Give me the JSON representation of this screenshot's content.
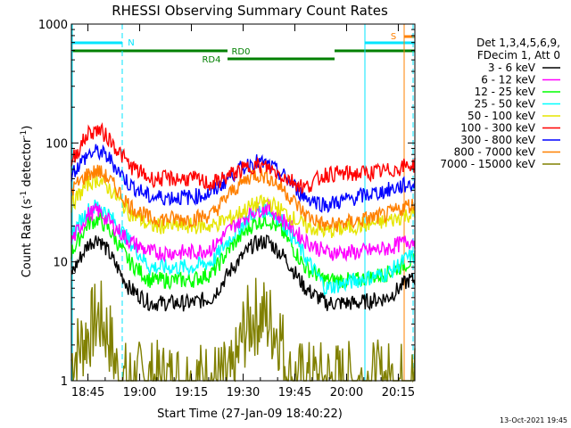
{
  "chart_data": {
    "type": "line",
    "title": "RHESSI Observing Summary Count Rates",
    "xlabel": "Start Time (27-Jan-09 18:40:22)",
    "ylabel_main": "Count Rate (s",
    "ylabel_sup1": "-1",
    "ylabel_mid": " detector",
    "ylabel_sup2": "-1",
    "ylabel_end": ")",
    "yscale": "log",
    "ylim": [
      1,
      1000
    ],
    "xlim_minutes": [
      18.67,
      20.33
    ],
    "x_ticks": [
      {
        "label": "18:45",
        "t": 18.75
      },
      {
        "label": "19:00",
        "t": 19.0
      },
      {
        "label": "19:15",
        "t": 19.25
      },
      {
        "label": "19:30",
        "t": 19.5
      },
      {
        "label": "19:45",
        "t": 19.75
      },
      {
        "label": "20:00",
        "t": 20.0
      },
      {
        "label": "20:15",
        "t": 20.25
      }
    ],
    "y_ticks": [
      {
        "label": "1",
        "v": 1
      },
      {
        "label": "10",
        "v": 10
      },
      {
        "label": "100",
        "v": 100
      },
      {
        "label": "1000",
        "v": 1000
      }
    ],
    "legend": {
      "header1": "Det 1,3,4,5,6,9,",
      "header2": "FDecim 1, Att 0",
      "placement": "right"
    },
    "series": [
      {
        "name": "3 - 6 keV",
        "color": "#000000",
        "points": [
          [
            18.67,
            8
          ],
          [
            18.75,
            14
          ],
          [
            18.8,
            16
          ],
          [
            18.85,
            12
          ],
          [
            18.95,
            6
          ],
          [
            19.05,
            4.5
          ],
          [
            19.25,
            4.5
          ],
          [
            19.35,
            5
          ],
          [
            19.45,
            9
          ],
          [
            19.55,
            14
          ],
          [
            19.62,
            15
          ],
          [
            19.7,
            11
          ],
          [
            19.8,
            6
          ],
          [
            19.9,
            4.5
          ],
          [
            20.05,
            4.5
          ],
          [
            20.2,
            5
          ],
          [
            20.3,
            7
          ]
        ]
      },
      {
        "name": "6 - 12 keV",
        "color": "#ff00ff",
        "points": [
          [
            18.67,
            15
          ],
          [
            18.75,
            25
          ],
          [
            18.8,
            27
          ],
          [
            18.85,
            22
          ],
          [
            18.95,
            15
          ],
          [
            19.05,
            12
          ],
          [
            19.25,
            12
          ],
          [
            19.35,
            13
          ],
          [
            19.45,
            20
          ],
          [
            19.55,
            27
          ],
          [
            19.62,
            29
          ],
          [
            19.7,
            22
          ],
          [
            19.8,
            15
          ],
          [
            19.9,
            12
          ],
          [
            20.05,
            12
          ],
          [
            20.2,
            13
          ],
          [
            20.3,
            15
          ]
        ]
      },
      {
        "name": "12 - 25 keV",
        "color": "#00ff00",
        "points": [
          [
            18.67,
            12
          ],
          [
            18.75,
            21
          ],
          [
            18.8,
            23
          ],
          [
            18.85,
            19
          ],
          [
            18.95,
            10
          ],
          [
            19.05,
            7
          ],
          [
            19.25,
            7
          ],
          [
            19.35,
            8
          ],
          [
            19.45,
            14
          ],
          [
            19.55,
            21
          ],
          [
            19.62,
            23
          ],
          [
            19.7,
            17
          ],
          [
            19.8,
            9
          ],
          [
            19.9,
            7
          ],
          [
            20.05,
            7
          ],
          [
            20.2,
            8
          ],
          [
            20.3,
            10
          ]
        ]
      },
      {
        "name": "25 - 50 keV",
        "color": "#00ffff",
        "points": [
          [
            18.67,
            17
          ],
          [
            18.75,
            27
          ],
          [
            18.8,
            30
          ],
          [
            18.85,
            25
          ],
          [
            18.95,
            15
          ],
          [
            19.05,
            9
          ],
          [
            19.25,
            9
          ],
          [
            19.35,
            10
          ],
          [
            19.45,
            17
          ],
          [
            19.55,
            26
          ],
          [
            19.62,
            28
          ],
          [
            19.7,
            21
          ],
          [
            19.8,
            11
          ],
          [
            19.9,
            6
          ],
          [
            20.05,
            7
          ],
          [
            20.2,
            8
          ],
          [
            20.3,
            11
          ]
        ]
      },
      {
        "name": "50 - 100 keV",
        "color": "#e6e600",
        "points": [
          [
            18.67,
            30
          ],
          [
            18.75,
            46
          ],
          [
            18.8,
            50
          ],
          [
            18.85,
            42
          ],
          [
            18.95,
            26
          ],
          [
            19.05,
            20
          ],
          [
            19.25,
            20
          ],
          [
            19.35,
            20
          ],
          [
            19.45,
            24
          ],
          [
            19.55,
            30
          ],
          [
            19.62,
            32
          ],
          [
            19.7,
            26
          ],
          [
            19.8,
            20
          ],
          [
            19.9,
            18
          ],
          [
            20.05,
            20
          ],
          [
            20.2,
            22
          ],
          [
            20.3,
            25
          ]
        ]
      },
      {
        "name": "100 - 300 keV",
        "color": "#ff0000",
        "points": [
          [
            18.67,
            70
          ],
          [
            18.75,
            120
          ],
          [
            18.8,
            130
          ],
          [
            18.85,
            110
          ],
          [
            18.95,
            65
          ],
          [
            19.05,
            50
          ],
          [
            19.25,
            50
          ],
          [
            19.35,
            45
          ],
          [
            19.45,
            55
          ],
          [
            19.55,
            65
          ],
          [
            19.62,
            62
          ],
          [
            19.7,
            52
          ],
          [
            19.8,
            42
          ],
          [
            19.9,
            55
          ],
          [
            20.05,
            55
          ],
          [
            20.2,
            58
          ],
          [
            20.3,
            65
          ]
        ]
      },
      {
        "name": "300 - 800 keV",
        "color": "#0000ff",
        "points": [
          [
            18.67,
            55
          ],
          [
            18.75,
            80
          ],
          [
            18.8,
            85
          ],
          [
            18.85,
            75
          ],
          [
            18.95,
            45
          ],
          [
            19.05,
            35
          ],
          [
            19.25,
            35
          ],
          [
            19.35,
            38
          ],
          [
            19.45,
            55
          ],
          [
            19.55,
            70
          ],
          [
            19.62,
            65
          ],
          [
            19.7,
            52
          ],
          [
            19.8,
            35
          ],
          [
            19.9,
            30
          ],
          [
            20.05,
            35
          ],
          [
            20.2,
            40
          ],
          [
            20.3,
            45
          ]
        ]
      },
      {
        "name": "800 - 7000 keV",
        "color": "#ff8000",
        "points": [
          [
            18.67,
            40
          ],
          [
            18.75,
            55
          ],
          [
            18.8,
            58
          ],
          [
            18.85,
            50
          ],
          [
            18.95,
            30
          ],
          [
            19.05,
            23
          ],
          [
            19.25,
            23
          ],
          [
            19.35,
            25
          ],
          [
            19.45,
            40
          ],
          [
            19.55,
            55
          ],
          [
            19.62,
            52
          ],
          [
            19.7,
            40
          ],
          [
            19.8,
            25
          ],
          [
            19.9,
            20
          ],
          [
            20.05,
            22
          ],
          [
            20.2,
            25
          ],
          [
            20.3,
            30
          ]
        ]
      },
      {
        "name": "7000 - 15000 keV",
        "color": "#808000",
        "points": [
          [
            18.67,
            1.5
          ],
          [
            18.75,
            2.5
          ],
          [
            18.8,
            3.5
          ],
          [
            18.85,
            2.5
          ],
          [
            18.9,
            1
          ],
          [
            19.0,
            1
          ],
          [
            19.45,
            1
          ],
          [
            19.5,
            2.5
          ],
          [
            19.55,
            3.5
          ],
          [
            19.6,
            3.5
          ],
          [
            19.68,
            2.5
          ],
          [
            19.72,
            1
          ],
          [
            20.3,
            1
          ]
        ]
      }
    ],
    "annotations": {
      "n_label": "N",
      "s_label": "S",
      "rd0_label": "RD0",
      "rd4_label": "RD4"
    }
  },
  "footer": {
    "timestamp": "13-Oct-2021 19:45"
  }
}
